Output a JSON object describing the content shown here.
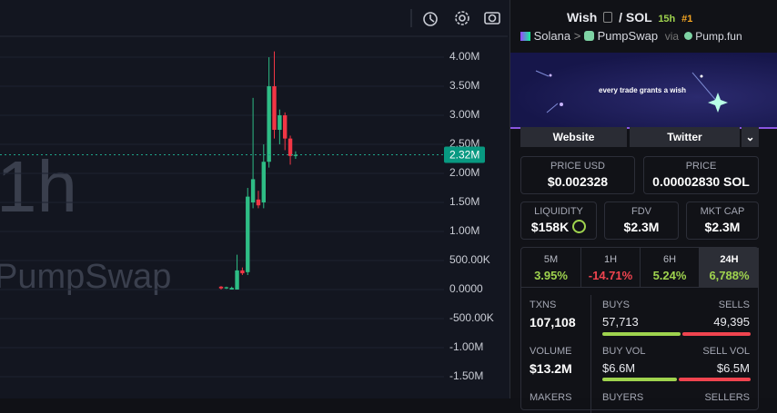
{
  "chart_data": {
    "type": "candlestick",
    "annotations": [
      "1h",
      "PumpSwap"
    ],
    "ylim": [
      -1875000,
      4360000
    ],
    "yticks": [
      {
        "value": 4000000,
        "label": "4.00M"
      },
      {
        "value": 3500000,
        "label": "3.50M"
      },
      {
        "value": 3000000,
        "label": "3.00M"
      },
      {
        "value": 2500000,
        "label": "2.50M"
      },
      {
        "value": 2000000,
        "label": "2.00M"
      },
      {
        "value": 1500000,
        "label": "1.50M"
      },
      {
        "value": 1000000,
        "label": "1.00M"
      },
      {
        "value": 500000,
        "label": "500.00K"
      },
      {
        "value": 0,
        "label": "0.0000"
      },
      {
        "value": -500000,
        "label": "-500.00K"
      },
      {
        "value": -1000000,
        "label": "-1.00M"
      },
      {
        "value": -1500000,
        "label": "-1.50M"
      }
    ],
    "open": [
      50000,
      20000,
      0,
      0,
      330000,
      300000,
      1500000,
      1550000,
      1500000,
      2200000,
      3500000,
      2750000,
      3000000,
      2600000,
      2300000
    ],
    "high": [
      60000,
      50000,
      50000,
      600000,
      380000,
      1750000,
      3300000,
      1700000,
      2500000,
      4000000,
      4100000,
      3100000,
      3050000,
      2650000,
      2380000
    ],
    "low": [
      0,
      10000,
      0,
      0,
      250000,
      250000,
      1400000,
      1400000,
      1400000,
      2100000,
      2600000,
      2500000,
      2400000,
      2150000,
      2250000
    ],
    "close": [
      20000,
      40000,
      30000,
      330000,
      280000,
      1600000,
      1900000,
      1450000,
      2200000,
      3500000,
      2750000,
      3000000,
      2600000,
      2300000,
      2320000
    ],
    "up_color": "#2ebd85",
    "down_color": "#f23645",
    "last_price": {
      "value": 2320000,
      "label": "2.32M"
    },
    "grid": true
  },
  "header": {
    "token": "Wish",
    "separator": "/",
    "quote": "SOL",
    "age": "15h",
    "rank": "#1"
  },
  "route": {
    "chain": "Solana",
    "arrow": ">",
    "dex": "PumpSwap",
    "via": "via",
    "launchpad": "Pump.fun"
  },
  "banner": {
    "text": "every trade grants a wish"
  },
  "links": [
    "Website",
    "Twitter"
  ],
  "price_usd": {
    "label": "PRICE USD",
    "value": "$0.002328"
  },
  "price_native": {
    "label": "PRICE",
    "value": "0.00002830 SOL"
  },
  "metrics": [
    {
      "label": "LIQUIDITY",
      "value": "$158K"
    },
    {
      "label": "FDV",
      "value": "$2.3M"
    },
    {
      "label": "MKT CAP",
      "value": "$2.3M"
    }
  ],
  "timeframes": [
    {
      "label": "5M",
      "change": "3.95%"
    },
    {
      "label": "1H",
      "change": "-14.71%"
    },
    {
      "label": "6H",
      "change": "5.24%"
    },
    {
      "label": "24H",
      "change": "6,788%"
    }
  ],
  "stats": {
    "txns": {
      "label": "TXNS",
      "value": "107,108"
    },
    "buys": {
      "label": "BUYS",
      "value": "57,713"
    },
    "sells": {
      "label": "SELLS",
      "value": "49,395"
    },
    "volume": {
      "label": "VOLUME",
      "value": "$13.2M"
    },
    "buy_vol": {
      "label": "BUY VOL",
      "value": "$6.6M"
    },
    "sell_vol": {
      "label": "SELL VOL",
      "value": "$6.5M"
    },
    "more": [
      "MAKERS",
      "BUYERS",
      "SELLERS"
    ]
  }
}
